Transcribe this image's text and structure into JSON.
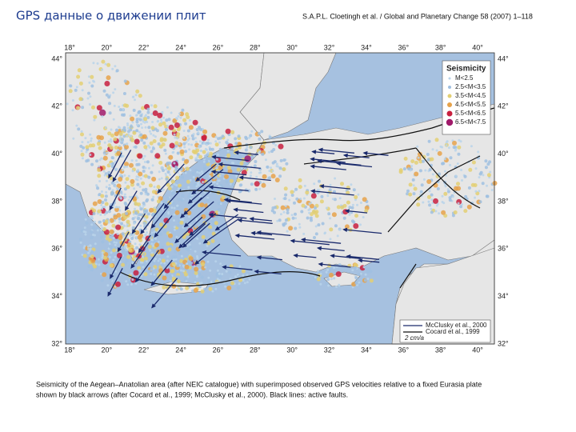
{
  "header": {
    "title": "GPS данные о движении плит",
    "citation": "S.A.P.L. Cloetingh et al. / Global and Planetary Change 58 (2007) 1–118"
  },
  "map": {
    "lon_labels": [
      "18°",
      "20°",
      "22°",
      "24°",
      "26°",
      "28°",
      "30°",
      "32°",
      "34°",
      "36°",
      "38°",
      "40°"
    ],
    "lat_labels": [
      "44°",
      "42°",
      "40°",
      "38°",
      "36°",
      "34°",
      "32°"
    ],
    "legend": {
      "title": "Seismicity",
      "items": [
        "M<2.5",
        "2.5<M<3.5",
        "3.5<M<4.5",
        "4.5<M<5.5",
        "5.5<M<6.5",
        "6.5<M<7.5"
      ]
    },
    "velocity_legend": {
      "items": [
        "McClusky et al., 2000",
        "Cocard et al., 1999"
      ],
      "scale": "2 cm/a"
    }
  },
  "caption": {
    "lines": [
      "Seismicity of the Aegean–Anatolian area (after NEIC catalogue) with superimposed observed GPS velocities relative to a fixed Eurasia plate",
      "shown by black arrows (after Cocard et al., 1999; McClusky et al., 2000). Black lines: active faults."
    ]
  }
}
